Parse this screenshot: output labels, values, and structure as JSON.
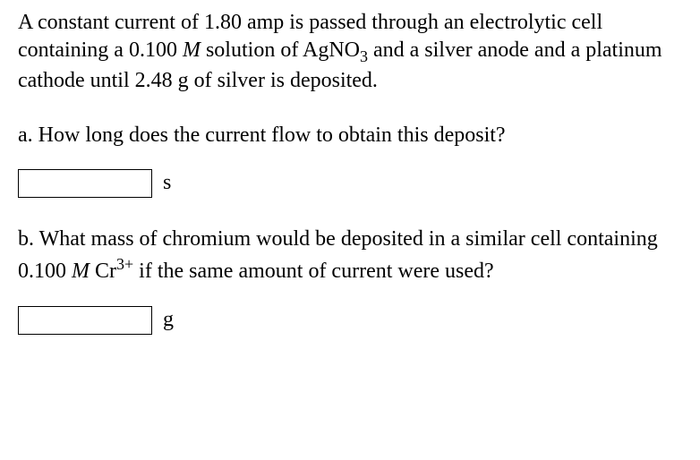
{
  "problem": {
    "intro_part1": "A constant current of 1.80 amp is passed through an electrolytic cell containing a 0.100 ",
    "intro_M1": "M",
    "intro_part2": "  solution of AgNO",
    "intro_sub3": "3",
    "intro_part3": " and a silver anode and a platinum cathode until 2.48 g of silver is deposited."
  },
  "question_a": {
    "text": "a. How long does the current flow to obtain this deposit?",
    "unit": "s",
    "input_value": ""
  },
  "question_b": {
    "text_part1": "b. What mass of chromium would be deposited in a similar cell containing 0.100 ",
    "text_M": "M",
    "text_part2": "  Cr",
    "text_sup": "3+",
    "text_part3": " if the same amount of current were used?",
    "unit": "g",
    "input_value": ""
  },
  "styling": {
    "font_family": "Times New Roman",
    "body_font_size": 24,
    "text_color": "#000000",
    "background_color": "#ffffff",
    "input_width": 150,
    "input_height": 32,
    "input_border_color": "#000000"
  }
}
